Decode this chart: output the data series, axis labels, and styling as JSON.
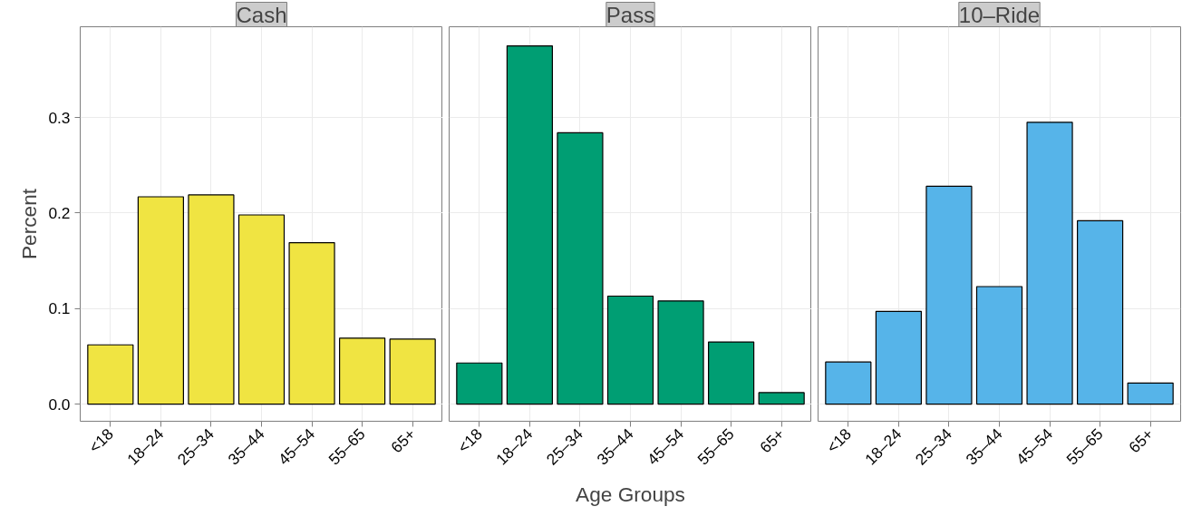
{
  "chart_data": [
    {
      "type": "bar",
      "title": "Cash",
      "ylabel": "Percent",
      "categories": [
        "<18",
        "18–24",
        "25–34",
        "35–44",
        "45–54",
        "55–65",
        "65+"
      ],
      "values": [
        0.062,
        0.217,
        0.219,
        0.198,
        0.169,
        0.069,
        0.068
      ],
      "color": "#f0e442",
      "ylim": [
        -0.018,
        0.395
      ],
      "yticks": [
        {
          "value": 0,
          "label": "0.0"
        },
        0.1,
        0.2,
        0.3
      ],
      "grid": true
    },
    {
      "type": "bar",
      "title": "Pass",
      "xlabel": "Age Groups",
      "categories": [
        "<18",
        "18–24",
        "25–34",
        "35–44",
        "45–54",
        "55–65",
        "65+"
      ],
      "values": [
        0.043,
        0.375,
        0.284,
        0.113,
        0.108,
        0.065,
        0.012
      ],
      "color": "#009e73",
      "ylim": [
        -0.018,
        0.395
      ],
      "yticks": [
        0,
        0.1,
        0.2,
        0.3
      ],
      "grid": true,
      "tick_labels": "x"
    },
    {
      "type": "bar",
      "title": "10–Ride",
      "categories": [
        "<18",
        "18–24",
        "25–34",
        "35–44",
        "45–54",
        "55–65",
        "65+"
      ],
      "values": [
        0.044,
        0.097,
        0.228,
        0.123,
        0.295,
        0.192,
        0.022
      ],
      "color": "#56b4e9",
      "ylim": [
        -0.018,
        0.395
      ],
      "yticks": [
        0,
        0.1,
        0.2,
        0.3
      ],
      "grid": true,
      "tick_labels": "x"
    }
  ]
}
